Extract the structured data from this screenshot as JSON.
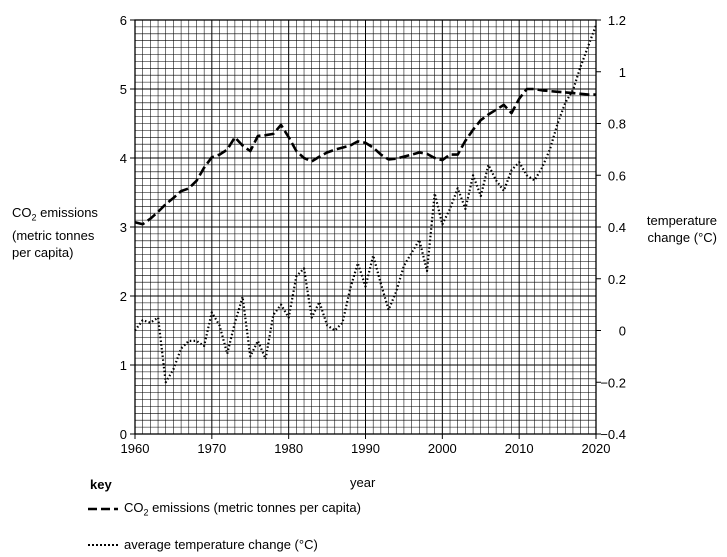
{
  "chart_data": {
    "type": "line",
    "xlabel": "year",
    "y_left_label_parts": [
      "CO",
      "2",
      " emissions",
      "(metric tonnes",
      "per capita)"
    ],
    "y_right_label_lines": [
      "temperature",
      "change (°C)"
    ],
    "xlim": [
      1960,
      2020
    ],
    "ylim_left": [
      0,
      6
    ],
    "ylim_right": [
      -0.4,
      1.2
    ],
    "x_ticks": [
      1960,
      1970,
      1980,
      1990,
      2000,
      2010,
      2020
    ],
    "y_left_ticks": [
      "0",
      "1",
      "2",
      "3",
      "4",
      "5",
      "6"
    ],
    "y_right_ticks": [
      "−0.4",
      "−0.2",
      "0",
      "0.2",
      "0.4",
      "0.6",
      "0.8",
      "1",
      "1.2"
    ],
    "grid": true,
    "series": [
      {
        "name": "CO₂ emissions (metric tonnes per capita)",
        "axis": "left",
        "style": "dashed",
        "x": [
          1960,
          1961,
          1962,
          1963,
          1964,
          1965,
          1966,
          1967,
          1968,
          1969,
          1970,
          1971,
          1972,
          1973,
          1974,
          1975,
          1976,
          1977,
          1978,
          1979,
          1980,
          1981,
          1982,
          1983,
          1984,
          1985,
          1986,
          1987,
          1988,
          1989,
          1990,
          1991,
          1992,
          1993,
          1994,
          1995,
          1996,
          1997,
          1998,
          1999,
          2000,
          2001,
          2002,
          2003,
          2004,
          2005,
          2006,
          2007,
          2008,
          2009,
          2010,
          2011,
          2012,
          2013,
          2014,
          2015,
          2016,
          2017,
          2018,
          2019,
          2020
        ],
        "values": [
          3.07,
          3.04,
          3.12,
          3.22,
          3.33,
          3.42,
          3.52,
          3.56,
          3.67,
          3.86,
          4.01,
          4.05,
          4.12,
          4.3,
          4.18,
          4.1,
          4.32,
          4.33,
          4.35,
          4.48,
          4.3,
          4.1,
          4.0,
          3.95,
          4.02,
          4.08,
          4.12,
          4.15,
          4.18,
          4.24,
          4.22,
          4.15,
          4.05,
          3.98,
          3.99,
          4.02,
          4.05,
          4.08,
          4.06,
          4.0,
          3.97,
          4.05,
          4.05,
          4.25,
          4.41,
          4.55,
          4.63,
          4.7,
          4.77,
          4.65,
          4.86,
          5.0,
          5.0,
          4.98,
          4.97,
          4.96,
          4.95,
          4.94,
          4.93,
          4.92,
          4.92
        ]
      },
      {
        "name": "average temperature change (°C)",
        "axis": "right",
        "style": "dotted",
        "x": [
          1960,
          1961,
          1962,
          1963,
          1964,
          1965,
          1966,
          1967,
          1968,
          1969,
          1970,
          1971,
          1972,
          1973,
          1974,
          1975,
          1976,
          1977,
          1978,
          1979,
          1980,
          1981,
          1982,
          1983,
          1984,
          1985,
          1986,
          1987,
          1988,
          1989,
          1990,
          1991,
          1992,
          1993,
          1994,
          1995,
          1996,
          1997,
          1998,
          1999,
          2000,
          2001,
          2002,
          2003,
          2004,
          2005,
          2006,
          2007,
          2008,
          2009,
          2010,
          2011,
          2012,
          2013,
          2014,
          2015,
          2016,
          2017,
          2018,
          2019,
          2020
        ],
        "values": [
          0.0,
          0.04,
          0.03,
          0.05,
          -0.2,
          -0.15,
          -0.07,
          -0.04,
          -0.04,
          -0.06,
          0.07,
          0.02,
          -0.09,
          0.03,
          0.13,
          -0.1,
          -0.04,
          -0.11,
          0.06,
          0.1,
          0.05,
          0.21,
          0.24,
          0.05,
          0.11,
          0.02,
          0.0,
          0.03,
          0.16,
          0.26,
          0.17,
          0.29,
          0.18,
          0.08,
          0.15,
          0.25,
          0.3,
          0.35,
          0.23,
          0.53,
          0.41,
          0.47,
          0.55,
          0.47,
          0.6,
          0.52,
          0.64,
          0.58,
          0.54,
          0.62,
          0.65,
          0.6,
          0.58,
          0.63,
          0.7,
          0.8,
          0.88,
          0.93,
          1.02,
          1.1,
          1.18
        ]
      }
    ],
    "legend_position": "bottom-left"
  },
  "key": {
    "title": "key",
    "co2_prefix": "CO",
    "co2_sub": "2",
    "co2_suffix": " emissions (metric tonnes per capita)",
    "temp_label": "average temperature change (°C)"
  }
}
